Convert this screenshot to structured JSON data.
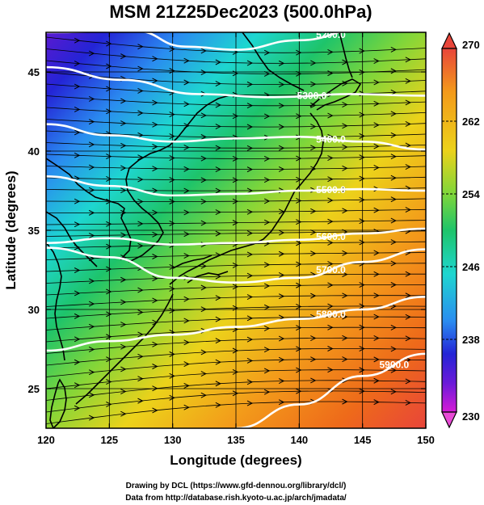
{
  "title": "MSM 21Z25Dec2023 (500.0hPa)",
  "x_axis": {
    "title": "Longitude (degrees)",
    "range": [
      120,
      150
    ],
    "ticks": [
      120,
      125,
      130,
      135,
      140,
      145,
      150
    ],
    "tick_labels": [
      "120",
      "125",
      "130",
      "135",
      "140",
      "145",
      "150"
    ]
  },
  "y_axis": {
    "title": "Latitude  (degrees)",
    "range": [
      22.5,
      47.5
    ],
    "ticks": [
      25,
      30,
      35,
      40,
      45
    ],
    "tick_labels": [
      "25",
      "30",
      "35",
      "40",
      "45"
    ]
  },
  "colorbar": {
    "min": 230,
    "max": 270,
    "labels": [
      "270",
      "262",
      "254",
      "246",
      "238",
      "230"
    ],
    "colors_top_to_bottom": [
      "#e8453a",
      "#f39a1a",
      "#ecd21a",
      "#7fd63a",
      "#1ec46a",
      "#1ed6d0",
      "#2a8cf0",
      "#2424d6",
      "#6a1ad8",
      "#d61ad6"
    ]
  },
  "contours": [
    {
      "label": "5200.0",
      "lat_at_lon": [
        [
          120,
          47.5
        ],
        [
          127,
          47.6
        ],
        [
          131,
          46.6
        ],
        [
          135,
          46.4
        ],
        [
          140,
          47.0
        ],
        [
          145,
          47.7
        ],
        [
          150,
          48.5
        ]
      ]
    },
    {
      "label": "5300.0",
      "lat_at_lon": [
        [
          120,
          45.3
        ],
        [
          126,
          44.5
        ],
        [
          132,
          43.6
        ],
        [
          138,
          43.4
        ],
        [
          144,
          43.6
        ],
        [
          150,
          43.5
        ]
      ]
    },
    {
      "label": "5400.0",
      "lat_at_lon": [
        [
          120,
          41.7
        ],
        [
          125,
          41.0
        ],
        [
          130,
          40.6
        ],
        [
          135,
          40.8
        ],
        [
          140,
          40.9
        ],
        [
          145,
          40.6
        ],
        [
          150,
          40.1
        ]
      ]
    },
    {
      "label": "5500.0",
      "lat_at_lon": [
        [
          120,
          38.4
        ],
        [
          125,
          37.8
        ],
        [
          130,
          37.2
        ],
        [
          135,
          37.3
        ],
        [
          140,
          37.5
        ],
        [
          145,
          37.6
        ],
        [
          150,
          37.5
        ]
      ]
    },
    {
      "label": "5600.0",
      "lat_at_lon": [
        [
          120,
          34.2
        ],
        [
          125,
          34.5
        ],
        [
          130,
          34.1
        ],
        [
          135,
          34.2
        ],
        [
          140,
          34.4
        ],
        [
          145,
          34.8
        ],
        [
          150,
          35.1
        ]
      ]
    },
    {
      "label": "5700.0",
      "lat_at_lon": [
        [
          120,
          33.9
        ],
        [
          125,
          33.3
        ],
        [
          130,
          32.0
        ],
        [
          135,
          31.7
        ],
        [
          140,
          32.0
        ],
        [
          145,
          33.0
        ],
        [
          150,
          33.8
        ]
      ]
    },
    {
      "label": "5800.0",
      "lat_at_lon": [
        [
          120,
          27.4
        ],
        [
          125,
          28.0
        ],
        [
          130,
          28.4
        ],
        [
          135,
          28.9
        ],
        [
          140,
          29.4
        ],
        [
          145,
          30.0
        ],
        [
          150,
          30.8
        ]
      ]
    },
    {
      "label": "5900.0",
      "lat_at_lon": [
        [
          135,
          22.5
        ],
        [
          140,
          24.0
        ],
        [
          145,
          25.8
        ],
        [
          150,
          27.2
        ]
      ]
    }
  ],
  "credits": {
    "line1": "Drawing by DCL (https://www.gfd-dennou.org/library/dcl/)",
    "line2": "Data from http://database.rish.kyoto-u.ac.jp/arch/jmadata/"
  }
}
